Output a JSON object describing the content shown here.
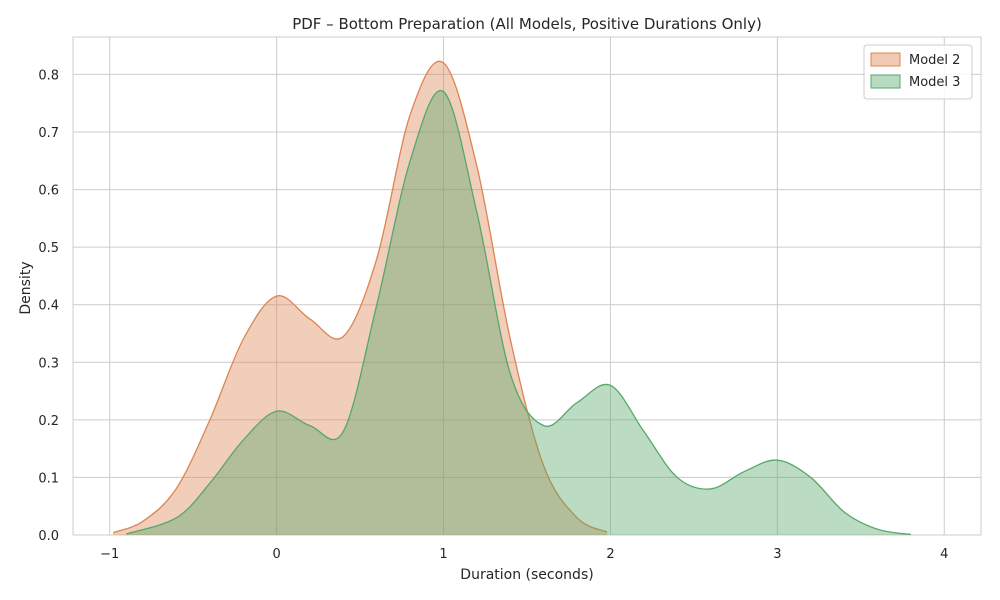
{
  "chart_data": {
    "type": "area",
    "title": "PDF – Bottom Preparation (All Models, Positive Durations Only)",
    "xlabel": "Duration (seconds)",
    "ylabel": "Density",
    "xlim": [
      -1.22,
      4.22
    ],
    "ylim": [
      0,
      0.865
    ],
    "x_ticks": [
      -1,
      0,
      1,
      2,
      3,
      4
    ],
    "x_tick_labels": [
      "−1",
      "0",
      "1",
      "2",
      "3",
      "4"
    ],
    "y_ticks": [
      0.0,
      0.1,
      0.2,
      0.3,
      0.4,
      0.5,
      0.6,
      0.7,
      0.8
    ],
    "y_tick_labels": [
      "0.0",
      "0.1",
      "0.2",
      "0.3",
      "0.4",
      "0.5",
      "0.6",
      "0.7",
      "0.8"
    ],
    "grid": true,
    "legend_position": "top-right",
    "series": [
      {
        "name": "Model 2",
        "color": "#dd8452",
        "fill_color": "#f2c9b2",
        "x": [
          -0.98,
          -0.8,
          -0.6,
          -0.4,
          -0.2,
          0.0,
          0.2,
          0.4,
          0.6,
          0.8,
          1.0,
          1.2,
          1.4,
          1.6,
          1.8,
          1.98
        ],
        "y": [
          0.004,
          0.024,
          0.081,
          0.2,
          0.34,
          0.415,
          0.375,
          0.345,
          0.48,
          0.73,
          0.82,
          0.64,
          0.34,
          0.12,
          0.03,
          0.005
        ]
      },
      {
        "name": "Model 3",
        "color": "#55a868",
        "fill_color": "#b8dbbf",
        "x": [
          -0.9,
          -0.6,
          -0.4,
          -0.2,
          0.0,
          0.2,
          0.4,
          0.6,
          0.8,
          1.0,
          1.2,
          1.4,
          1.6,
          1.8,
          2.0,
          2.2,
          2.4,
          2.6,
          2.8,
          3.0,
          3.2,
          3.4,
          3.6,
          3.8
        ],
        "y": [
          0.002,
          0.03,
          0.09,
          0.165,
          0.215,
          0.19,
          0.18,
          0.4,
          0.65,
          0.77,
          0.56,
          0.28,
          0.19,
          0.23,
          0.26,
          0.18,
          0.1,
          0.08,
          0.11,
          0.13,
          0.1,
          0.04,
          0.01,
          0.001
        ]
      }
    ]
  }
}
